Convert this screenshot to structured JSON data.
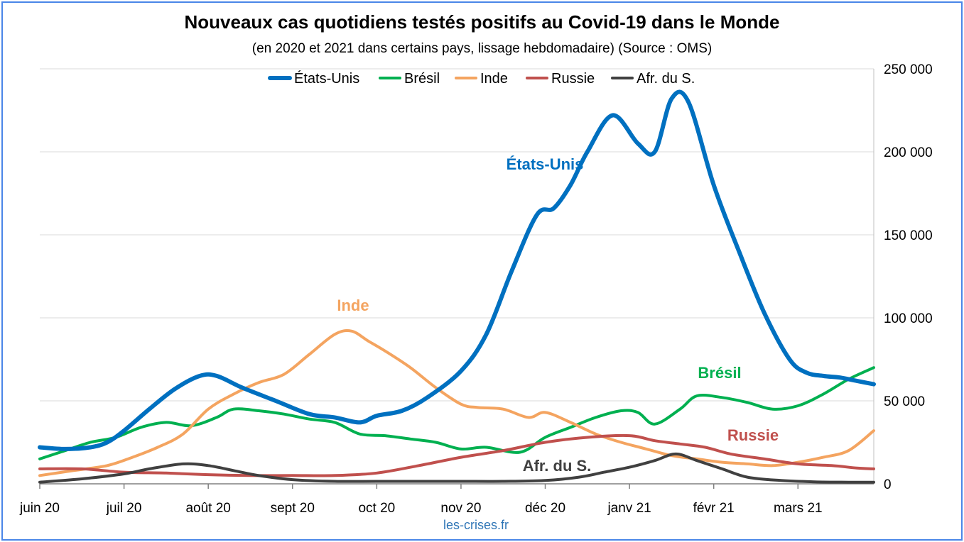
{
  "chart_data": {
    "type": "line",
    "title": "Nouveaux cas quotidiens testés positifs au Covid-19 dans le Monde",
    "subtitle": "(en 2020 et 2021 dans certains pays, lissage hebdomadaire) (Source : OMS)",
    "source": "les-crises.fr",
    "x_tick_labels": [
      "juin 20",
      "juil 20",
      "août 20",
      "sept 20",
      "oct 20",
      "nov 20",
      "déc 20",
      "janv 21",
      "févr 21",
      "mars 21"
    ],
    "x_range_months": [
      0,
      9.9
    ],
    "y_ticks": [
      0,
      50000,
      100000,
      150000,
      200000,
      250000
    ],
    "y_tick_labels": [
      "0",
      "50 000",
      "100 000",
      "150 000",
      "200 000",
      "250 000"
    ],
    "ylim": [
      0,
      250000
    ],
    "y_axis_side": "right",
    "grid": "horizontal",
    "legend_position": "top",
    "series": [
      {
        "name": "États-Unis",
        "color": "#0070c0",
        "width": 6,
        "annotation": "États-Unis",
        "x": [
          0,
          0.3,
          0.6,
          0.8,
          1.0,
          1.3,
          1.6,
          1.9,
          2.1,
          2.4,
          2.8,
          3.2,
          3.5,
          3.8,
          4.0,
          4.3,
          4.6,
          5.0,
          5.3,
          5.6,
          5.9,
          6.1,
          6.3,
          6.5,
          6.8,
          7.1,
          7.3,
          7.5,
          7.7,
          8.0,
          8.3,
          8.6,
          8.9,
          9.1,
          9.3,
          9.5,
          9.7,
          9.9
        ],
        "y": [
          22000,
          21000,
          22000,
          25000,
          32000,
          45000,
          57000,
          65000,
          65000,
          58000,
          50000,
          42000,
          40000,
          37000,
          41000,
          44000,
          52000,
          68000,
          90000,
          128000,
          162000,
          166000,
          180000,
          200000,
          222000,
          205000,
          200000,
          232000,
          230000,
          180000,
          140000,
          103000,
          75000,
          67000,
          65000,
          64000,
          62000,
          60000
        ]
      },
      {
        "name": "Brésil",
        "color": "#00b050",
        "width": 4,
        "annotation": "Brésil",
        "x": [
          0,
          0.3,
          0.6,
          0.9,
          1.2,
          1.5,
          1.8,
          2.1,
          2.3,
          2.6,
          2.9,
          3.2,
          3.5,
          3.8,
          4.1,
          4.4,
          4.7,
          5.0,
          5.3,
          5.7,
          6.0,
          6.3,
          6.6,
          6.9,
          7.1,
          7.3,
          7.6,
          7.8,
          8.1,
          8.4,
          8.7,
          9.0,
          9.3,
          9.6,
          9.9
        ],
        "y": [
          15000,
          20000,
          25000,
          28000,
          34000,
          37000,
          35000,
          40000,
          45000,
          44000,
          42000,
          39000,
          37000,
          30000,
          29000,
          27000,
          25000,
          21000,
          22000,
          19000,
          28000,
          34000,
          40000,
          44000,
          43000,
          36000,
          45000,
          53000,
          52000,
          49000,
          45000,
          47000,
          54000,
          63000,
          70000
        ]
      },
      {
        "name": "Inde",
        "color": "#f4a460",
        "width": 4,
        "annotation": "Inde",
        "x": [
          0,
          0.4,
          0.8,
          1.1,
          1.4,
          1.7,
          2.0,
          2.3,
          2.6,
          2.9,
          3.2,
          3.5,
          3.7,
          3.9,
          4.1,
          4.4,
          4.7,
          5.0,
          5.2,
          5.5,
          5.8,
          6.0,
          6.3,
          6.6,
          6.9,
          7.2,
          7.5,
          7.8,
          8.1,
          8.4,
          8.7,
          9.0,
          9.3,
          9.6,
          9.9
        ],
        "y": [
          5000,
          8000,
          11000,
          16000,
          22000,
          30000,
          45000,
          54000,
          61000,
          66000,
          78000,
          90000,
          92000,
          86000,
          80000,
          70000,
          58000,
          48000,
          46000,
          45000,
          40000,
          43000,
          37000,
          30000,
          25000,
          21000,
          17000,
          15000,
          13000,
          12000,
          11000,
          13000,
          16000,
          20000,
          32000
        ]
      },
      {
        "name": "Russie",
        "color": "#c0504d",
        "width": 4,
        "annotation": "Russie",
        "x": [
          0,
          0.5,
          1.0,
          1.5,
          2.0,
          2.5,
          3.0,
          3.5,
          4.0,
          4.5,
          5.0,
          5.5,
          6.0,
          6.5,
          7.0,
          7.3,
          7.6,
          7.9,
          8.2,
          8.6,
          9.0,
          9.4,
          9.7,
          9.9
        ],
        "y": [
          9000,
          9000,
          7000,
          6500,
          5500,
          5000,
          5000,
          5000,
          6500,
          11000,
          16000,
          20000,
          25000,
          28000,
          29000,
          26000,
          24000,
          22000,
          18000,
          15000,
          12000,
          11000,
          9500,
          9000
        ]
      },
      {
        "name": "Afr. du S.",
        "color": "#404040",
        "width": 4,
        "annotation": "Afr. du S.",
        "x": [
          0,
          0.5,
          1.0,
          1.3,
          1.7,
          2.0,
          2.3,
          2.6,
          3.0,
          3.5,
          4.0,
          4.5,
          5.0,
          5.5,
          6.0,
          6.4,
          6.7,
          7.0,
          7.3,
          7.55,
          7.8,
          8.1,
          8.4,
          8.8,
          9.2,
          9.6,
          9.9
        ],
        "y": [
          1000,
          3000,
          6000,
          9000,
          12000,
          11000,
          8000,
          5000,
          2500,
          1500,
          1500,
          1500,
          1500,
          1500,
          2000,
          4000,
          7000,
          10000,
          14000,
          18000,
          14000,
          9000,
          4000,
          2000,
          1200,
          1000,
          1000
        ]
      }
    ]
  }
}
